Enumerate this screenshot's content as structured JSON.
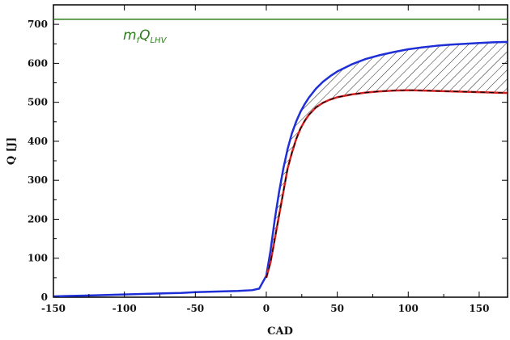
{
  "chart_data": {
    "type": "line",
    "title": "",
    "xlabel": "CAD",
    "ylabel": "Q [J]",
    "xlim": [
      -150,
      170
    ],
    "ylim": [
      0,
      750
    ],
    "xticks": [
      -150,
      -100,
      -50,
      0,
      50,
      100,
      150
    ],
    "yticks": [
      0,
      100,
      200,
      300,
      400,
      500,
      600,
      700
    ],
    "grid": false,
    "annotation": {
      "text_main": "m",
      "text_sub1": "f",
      "text_mid": "Q",
      "text_sub2": "LHV"
    },
    "reference_line": {
      "label": "mfQLHV",
      "y": 713,
      "color": "#2e7d1b"
    },
    "series": [
      {
        "color": "#1f2fd6",
        "x": [
          -150,
          -140,
          -130,
          -120,
          -110,
          -100,
          -90,
          -80,
          -70,
          -60,
          -50,
          -40,
          -30,
          -20,
          -10,
          -5,
          0,
          3,
          6,
          9,
          12,
          15,
          18,
          21,
          24,
          27,
          30,
          35,
          40,
          45,
          50,
          60,
          70,
          80,
          90,
          100,
          110,
          120,
          130,
          140,
          150,
          160,
          170
        ],
        "y": [
          2,
          3,
          4,
          5,
          6,
          7,
          8,
          9,
          10,
          11,
          13,
          14,
          15,
          16,
          18,
          22,
          55,
          120,
          200,
          270,
          330,
          380,
          420,
          450,
          475,
          495,
          512,
          535,
          553,
          567,
          579,
          597,
          611,
          621,
          629,
          636,
          641,
          645,
          648,
          650,
          652,
          654,
          655
        ]
      },
      {
        "color": "#d62020",
        "x": [
          0,
          3,
          6,
          9,
          12,
          15,
          18,
          21,
          24,
          27,
          30,
          35,
          40,
          45,
          50,
          60,
          70,
          80,
          90,
          100,
          110,
          120,
          130,
          140,
          150,
          160,
          170
        ],
        "y": [
          50,
          90,
          150,
          210,
          270,
          330,
          370,
          405,
          432,
          452,
          468,
          487,
          499,
          507,
          513,
          520,
          525,
          528,
          530,
          531,
          530,
          529,
          528,
          527,
          526,
          525,
          524
        ]
      }
    ]
  }
}
